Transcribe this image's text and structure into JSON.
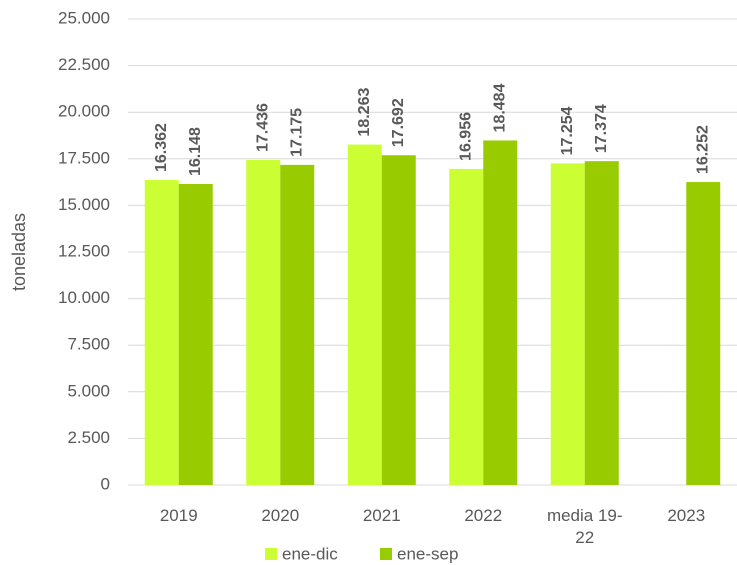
{
  "chart_data": {
    "type": "bar",
    "y_label": "toneladas",
    "categories": [
      "2019",
      "2020",
      "2021",
      "2022",
      "media 19-22",
      "2023"
    ],
    "series": [
      {
        "name": "ene-dic",
        "color": "#ccff33",
        "values": [
          16362,
          17436,
          18263,
          16956,
          17254,
          null
        ],
        "value_labels": [
          "16.362",
          "17.436",
          "18.263",
          "16.956",
          "17.254",
          null
        ]
      },
      {
        "name": "ene-sep",
        "color": "#99cc00",
        "values": [
          16148,
          17175,
          17692,
          18484,
          17374,
          16252
        ],
        "value_labels": [
          "16.148",
          "17.175",
          "17.692",
          "18.484",
          "17.374",
          "16.252"
        ]
      }
    ],
    "ylim": [
      0,
      25000
    ],
    "yticks": [
      0,
      {
        "value": 2500,
        "label": "2.500"
      },
      {
        "value": 5000,
        "label": "5.000"
      },
      {
        "value": 7500,
        "label": "7.500"
      },
      {
        "value": 10000,
        "label": "10.000"
      },
      {
        "value": 12500,
        "label": "12.500"
      },
      {
        "value": 15000,
        "label": "15.000"
      },
      {
        "value": 17500,
        "label": "17.500"
      },
      {
        "value": 20000,
        "label": "20.000"
      },
      {
        "value": 22500,
        "label": "22.500"
      },
      {
        "value": 25000,
        "label": "25.000"
      }
    ],
    "grid": true,
    "legend": "bottom"
  }
}
